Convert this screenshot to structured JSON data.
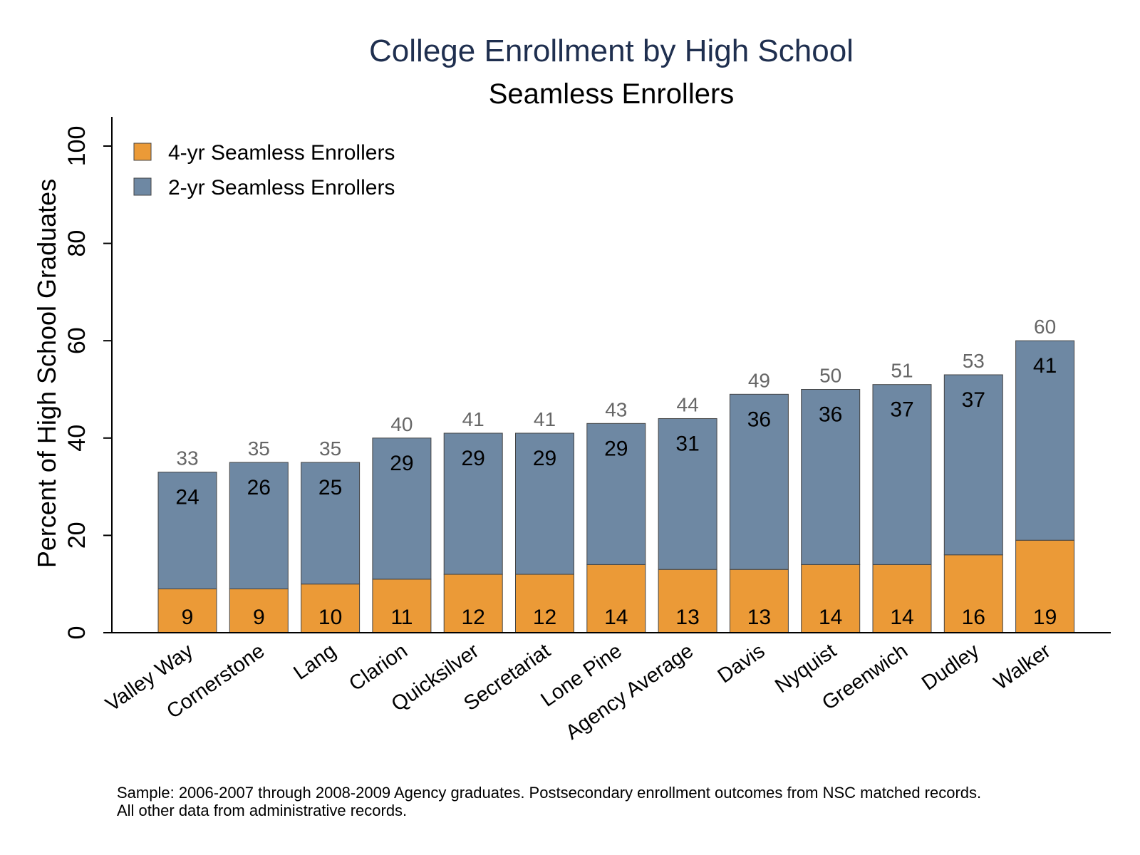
{
  "chart_data": {
    "type": "bar",
    "stacked": true,
    "title": "College Enrollment by High School",
    "subtitle": "Seamless Enrollers",
    "xlabel": "",
    "ylabel": "Percent of High School Graduates",
    "ylim": [
      0,
      100
    ],
    "yticks": [
      "0",
      "20",
      "40",
      "60",
      "80",
      "100"
    ],
    "grid": false,
    "legend_position": "top-left",
    "categories": [
      "Valley Way",
      "Cornerstone",
      "Lang",
      "Clarion",
      "Quicksilver",
      "Secretariat",
      "Lone Pine",
      "Agency Average",
      "Davis",
      "Nyquist",
      "Greenwich",
      "Dudley",
      "Walker"
    ],
    "series": [
      {
        "name": "4-yr Seamless Enrollers",
        "color": "#eb9a37",
        "values": [
          9,
          9,
          10,
          11,
          12,
          12,
          14,
          13,
          13,
          14,
          14,
          16,
          19
        ]
      },
      {
        "name": "2-yr Seamless Enrollers",
        "color": "#6e88a3",
        "values": [
          24,
          26,
          25,
          29,
          29,
          29,
          29,
          31,
          36,
          36,
          37,
          37,
          41
        ]
      }
    ],
    "totals": [
      33,
      35,
      35,
      40,
      41,
      41,
      43,
      44,
      49,
      50,
      51,
      53,
      60
    ]
  },
  "notes": {
    "line1": "Sample: 2006-2007 through 2008-2009 Agency graduates. Postsecondary enrollment outcomes from NSC matched records.",
    "line2": "All other data from administrative records."
  }
}
